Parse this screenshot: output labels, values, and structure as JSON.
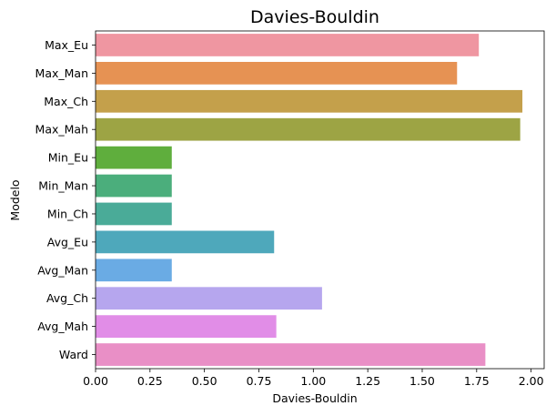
{
  "chart_data": {
    "type": "bar",
    "orientation": "horizontal",
    "title": "Davies-Bouldin",
    "xlabel": "Davies-Bouldin",
    "ylabel": "Modelo",
    "xlim": [
      0,
      2.06
    ],
    "xticks": [
      "0.00",
      "0.25",
      "0.50",
      "0.75",
      "1.00",
      "1.25",
      "1.50",
      "1.75",
      "2.00"
    ],
    "grid": false,
    "categories": [
      "Max_Eu",
      "Max_Man",
      "Max_Ch",
      "Max_Mah",
      "Min_Eu",
      "Min_Man",
      "Min_Ch",
      "Avg_Eu",
      "Avg_Man",
      "Avg_Ch",
      "Avg_Mah",
      "Ward"
    ],
    "values": [
      1.76,
      1.66,
      1.96,
      1.95,
      0.35,
      0.35,
      0.35,
      0.82,
      0.35,
      1.04,
      0.83,
      1.79
    ],
    "colors": [
      "#ef96a1",
      "#e69253",
      "#c4a04b",
      "#9da444",
      "#5fae3d",
      "#4bae7c",
      "#4aab98",
      "#4ea8bb",
      "#6aabe4",
      "#b6a6ee",
      "#e18de7",
      "#e98fc6"
    ]
  }
}
